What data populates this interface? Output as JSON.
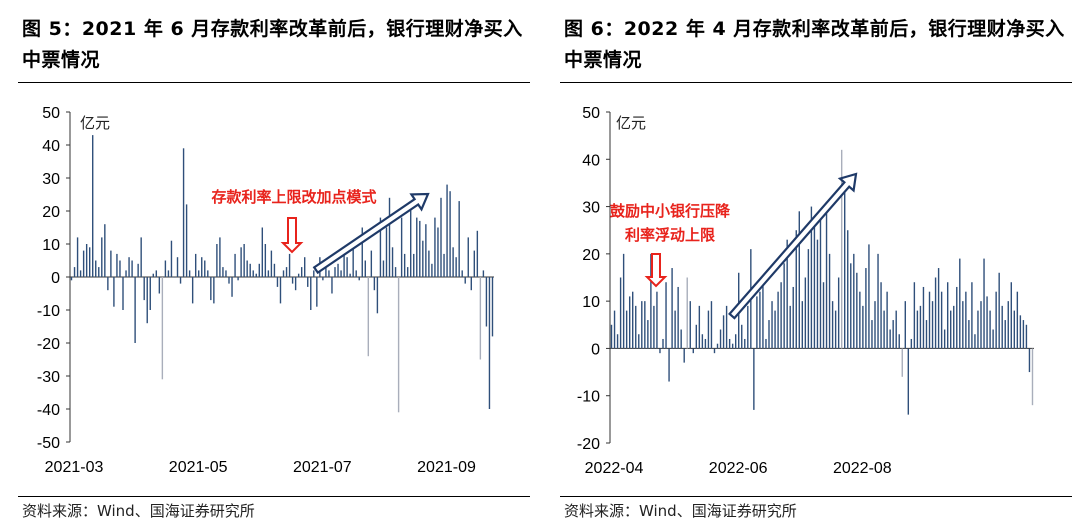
{
  "panels": [
    {
      "title": "图 5：2021 年 6 月存款利率改革前后，银行理财净买入中票情况",
      "source": "资料来源：Wind、国海证券研究所",
      "chart_data": {
        "type": "bar",
        "unit": "亿元",
        "ylim": [
          -50,
          50
        ],
        "yticks": [
          -50,
          -40,
          -30,
          -20,
          -10,
          0,
          10,
          20,
          30,
          40,
          50
        ],
        "x_tick_labels": [
          "2021-03",
          "2021-05",
          "2021-07",
          "2021-09"
        ],
        "x_tick_index": [
          0,
          41,
          82,
          123
        ],
        "bar_color": "#2f4f7a",
        "light_bar_color": "#a9aebb",
        "values": [
          -1,
          3,
          12,
          2,
          8,
          10,
          9,
          43,
          5,
          3,
          12,
          16,
          -4,
          8,
          -9,
          7,
          5,
          -10,
          2,
          6,
          5,
          -20,
          4,
          12,
          -7,
          -14,
          -10,
          1,
          2,
          -5,
          -31,
          5,
          2,
          11,
          0,
          6,
          -2,
          39,
          22,
          2,
          -8,
          7,
          2,
          6,
          5,
          2,
          -7,
          -8,
          10,
          12,
          3,
          2,
          -2,
          -6,
          7,
          -1,
          9,
          10,
          5,
          4,
          2,
          1,
          4,
          15,
          10,
          2,
          8,
          4,
          -3,
          -8,
          2,
          3,
          7,
          -2,
          -4,
          1,
          3,
          6,
          -3,
          -10,
          2,
          -9,
          6,
          -1,
          4,
          2,
          -5,
          3,
          4,
          2,
          8,
          6,
          1,
          10,
          2,
          -1,
          15,
          5,
          -24,
          8,
          -4,
          -11,
          18,
          5,
          15,
          24,
          9,
          3,
          -41,
          18,
          7,
          3,
          21,
          7,
          18,
          17,
          11,
          16,
          8,
          4,
          18,
          15,
          24,
          7,
          28,
          26,
          9,
          6,
          23,
          2,
          -2,
          12,
          -4,
          8,
          14,
          -25,
          2,
          -15,
          -40,
          -18
        ],
        "light_bars": [
          30,
          98,
          108,
          135
        ],
        "annotations": [
          {
            "text": "存款利率上限改加点模式",
            "color": "#e8231c"
          }
        ]
      }
    },
    {
      "title": "图 6：2022 年 4 月存款利率改革前后，银行理财净买入中票情况",
      "source": "资料来源：Wind、国海证券研究所",
      "chart_data": {
        "type": "bar",
        "unit": "亿元",
        "ylim": [
          -20,
          50
        ],
        "yticks": [
          -20,
          -10,
          0,
          10,
          20,
          30,
          40,
          50
        ],
        "x_tick_labels": [
          "2022-04",
          "2022-06",
          "2022-08"
        ],
        "x_tick_index": [
          0,
          41,
          82
        ],
        "bar_color": "#2f4f7a",
        "light_bar_color": "#a9aebb",
        "values": [
          5,
          8,
          3,
          15,
          20,
          8,
          11,
          12,
          9,
          3,
          10,
          10,
          6,
          20,
          9,
          12,
          -1,
          2,
          14,
          -7,
          17,
          8,
          13,
          4,
          -3,
          15,
          10,
          -1,
          5,
          9,
          3,
          2,
          8,
          10,
          -1,
          1,
          4,
          7,
          9,
          2,
          1,
          3,
          16,
          5,
          2,
          9,
          21,
          -13,
          11,
          12,
          15,
          2,
          6,
          10,
          8,
          12,
          14,
          18,
          23,
          9,
          13,
          25,
          29,
          10,
          15,
          21,
          30,
          26,
          23,
          28,
          14,
          31,
          20,
          10,
          8,
          15,
          42,
          34,
          25,
          18,
          20,
          16,
          12,
          9,
          17,
          22,
          6,
          10,
          20,
          14,
          8,
          12,
          4,
          6,
          8,
          3,
          -6,
          10,
          -14,
          2,
          14,
          8,
          9,
          13,
          6,
          12,
          10,
          15,
          17,
          12,
          4,
          14,
          8,
          9,
          13,
          19,
          10,
          12,
          6,
          14,
          3,
          8,
          10,
          19,
          11,
          8,
          4,
          12,
          16,
          9,
          6,
          10,
          14,
          8,
          12,
          7,
          6,
          5,
          -5,
          -12
        ],
        "light_bars": [
          25,
          76,
          96,
          139
        ],
        "annotations": [
          {
            "text": "鼓励中小银行压降",
            "color": "#e8231c"
          },
          {
            "text": "利率浮动上限",
            "color": "#e8231c"
          }
        ]
      }
    }
  ]
}
